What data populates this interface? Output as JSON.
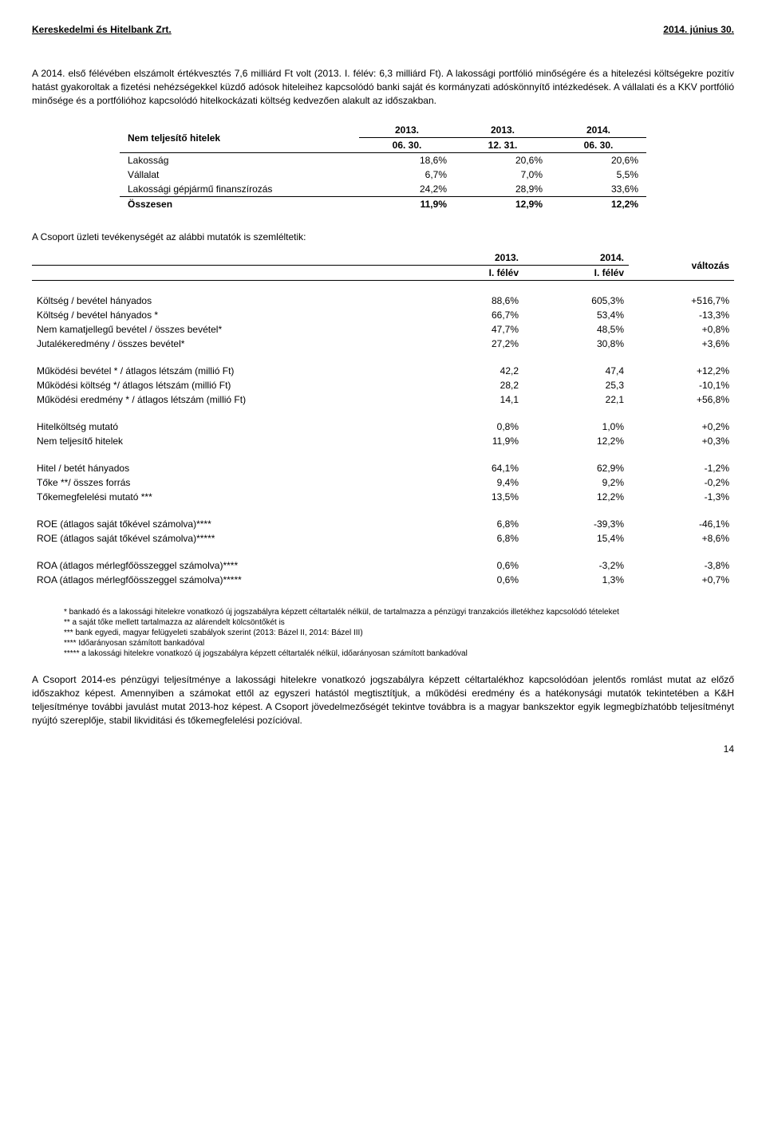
{
  "header": {
    "left": "Kereskedelmi és Hitelbank Zrt.",
    "right": "2014. június 30."
  },
  "para1": "A 2014. első félévében elszámolt értékvesztés 7,6 milliárd Ft volt (2013. I. félév: 6,3 milliárd Ft). A lakossági portfólió minőségére és a hitelezési költségekre pozitív hatást gyakoroltak a fizetési nehézségekkel küzdő adósok hiteleihez kapcsolódó banki saját és kormányzati adóskönnyítő intézkedések. A vállalati és a KKV portfólió minősége és a portfólióhoz kapcsolódó hitelkockázati költség kedvezően alakult az időszakban.",
  "nplTable": {
    "headerLabel": "Nem teljesítő hitelek",
    "cols": [
      {
        "l1": "2013.",
        "l2": "06. 30."
      },
      {
        "l1": "2013.",
        "l2": "12. 31."
      },
      {
        "l1": "2014.",
        "l2": "06. 30."
      }
    ],
    "rows": [
      {
        "label": "Lakosság",
        "v": [
          "18,6%",
          "20,6%",
          "20,6%"
        ]
      },
      {
        "label": "Vállalat",
        "v": [
          "6,7%",
          "7,0%",
          "5,5%"
        ]
      },
      {
        "label": "Lakossági gépjármű finanszírozás",
        "v": [
          "24,2%",
          "28,9%",
          "33,6%"
        ]
      }
    ],
    "total": {
      "label": "Összesen",
      "v": [
        "11,9%",
        "12,9%",
        "12,2%"
      ]
    }
  },
  "sectionLead": "A Csoport üzleti tevékenységét az alábbi mutatók is szemléltetik:",
  "ratiosTable": {
    "cols": [
      {
        "l1": "2013.",
        "l2": "I. félév"
      },
      {
        "l1": "2014.",
        "l2": "I. félév"
      },
      {
        "l1": "változás",
        "l2": ""
      }
    ],
    "groups": [
      [
        {
          "label": "Költség / bevétel hányados",
          "v": [
            "88,6%",
            "605,3%",
            "+516,7%"
          ]
        },
        {
          "label": "Költség / bevétel hányados *",
          "v": [
            "66,7%",
            "53,4%",
            "-13,3%"
          ]
        },
        {
          "label": "Nem kamatjellegű bevétel / összes bevétel*",
          "v": [
            "47,7%",
            "48,5%",
            "+0,8%"
          ]
        },
        {
          "label": "Jutalékeredmény / összes bevétel*",
          "v": [
            "27,2%",
            "30,8%",
            "+3,6%"
          ]
        }
      ],
      [
        {
          "label": "Működési bevétel * / átlagos létszám (millió Ft)",
          "v": [
            "42,2",
            "47,4",
            "+12,2%"
          ]
        },
        {
          "label": "Működési költség */ átlagos létszám (millió Ft)",
          "v": [
            "28,2",
            "25,3",
            "-10,1%"
          ]
        },
        {
          "label": "Működési eredmény * / átlagos létszám (millió Ft)",
          "v": [
            "14,1",
            "22,1",
            "+56,8%"
          ]
        }
      ],
      [
        {
          "label": "Hitelköltség mutató",
          "v": [
            "0,8%",
            "1,0%",
            "+0,2%"
          ]
        },
        {
          "label": "Nem teljesítő hitelek",
          "v": [
            "11,9%",
            "12,2%",
            "+0,3%"
          ]
        }
      ],
      [
        {
          "label": "Hitel / betét hányados",
          "v": [
            "64,1%",
            "62,9%",
            "-1,2%"
          ]
        },
        {
          "label": "Tőke **/ összes forrás",
          "v": [
            "9,4%",
            "9,2%",
            "-0,2%"
          ]
        },
        {
          "label": "Tőkemegfelelési mutató ***",
          "v": [
            "13,5%",
            "12,2%",
            "-1,3%"
          ]
        }
      ],
      [
        {
          "label": "ROE (átlagos saját tőkével számolva)****",
          "v": [
            "6,8%",
            "-39,3%",
            "-46,1%"
          ]
        },
        {
          "label": "ROE (átlagos saját tőkével számolva)*****",
          "v": [
            "6,8%",
            "15,4%",
            "+8,6%"
          ]
        }
      ],
      [
        {
          "label": "ROA (átlagos mérlegfőösszeggel számolva)****",
          "v": [
            "0,6%",
            "-3,2%",
            "-3,8%"
          ]
        },
        {
          "label": "ROA (átlagos mérlegfőösszeggel számolva)*****",
          "v": [
            "0,6%",
            "1,3%",
            "+0,7%"
          ]
        }
      ]
    ]
  },
  "footnotes": [
    "* bankadó és a lakossági hitelekre vonatkozó új jogszabályra képzett céltartalék nélkül, de tartalmazza a pénzügyi tranzakciós illetékhez kapcsolódó tételeket",
    "** a saját tőke mellett tartalmazza az alárendelt kölcsöntőkét is",
    "*** bank egyedi, magyar felügyeleti szabályok szerint (2013: Bázel II, 2014: Bázel III)",
    "**** Időarányosan számított bankadóval",
    "***** a lakossági hitelekre vonatkozó új jogszabályra képzett céltartalék nélkül, időarányosan számított bankadóval"
  ],
  "para2": "A Csoport 2014-es pénzügyi teljesítménye a lakossági hitelekre vonatkozó jogszabályra képzett céltartalékhoz kapcsolódóan jelentős romlást mutat az előző időszakhoz képest. Amennyiben a számokat ettől az egyszeri hatástól megtisztítjuk, a működési eredmény és a hatékonysági mutatók tekintetében a K&H teljesítménye további javulást mutat 2013-hoz képest. A Csoport jövedelmezőségét tekintve továbbra is a magyar bankszektor egyik legmegbízhatóbb teljesítményt nyújtó szereplője, stabil likviditási és tőkemegfelelési pozícióval.",
  "pageNum": "14"
}
